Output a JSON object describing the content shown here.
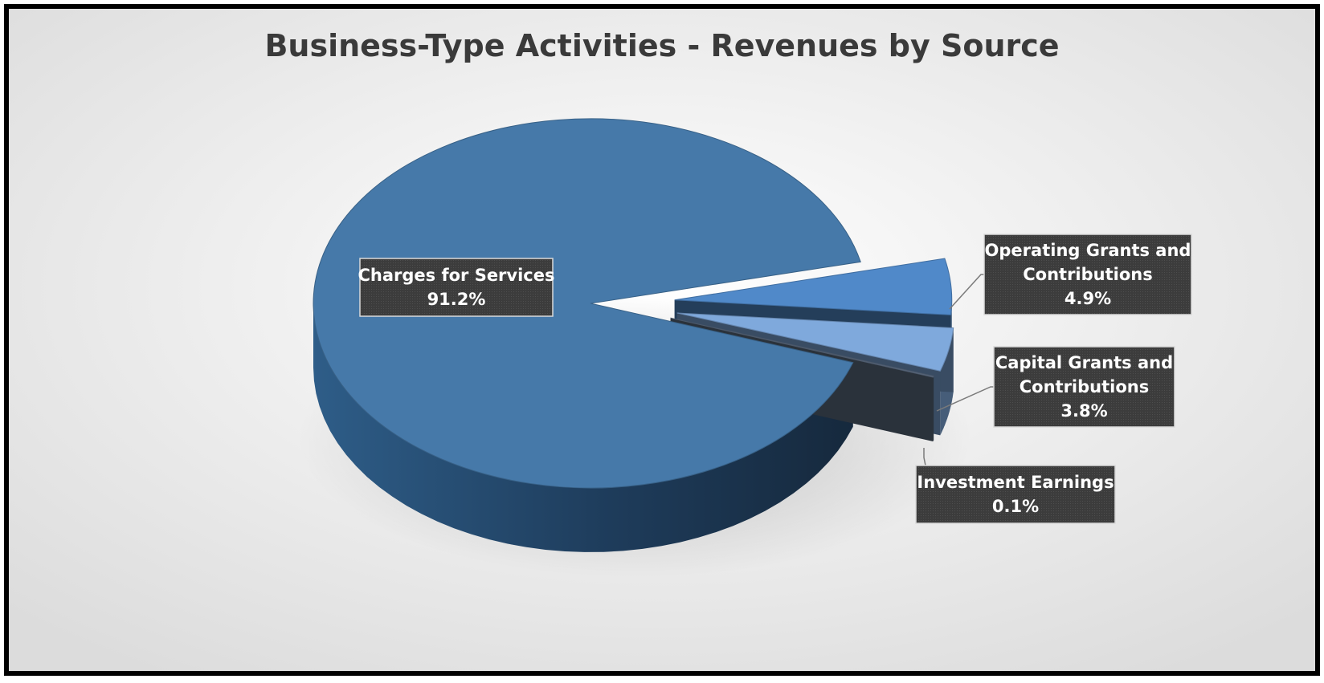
{
  "chart_data": {
    "type": "pie",
    "title": "Business-Type Activities - Revenues by Source",
    "slices": [
      {
        "name": "Charges for Services",
        "value": 91.2,
        "label": "91.2%",
        "color": "#4679A9"
      },
      {
        "name": "Operating Grants and Contributions",
        "value": 4.9,
        "label": "4.9%",
        "color": "#5089C9"
      },
      {
        "name": "Capital Grants and Contributions",
        "value": 3.8,
        "label": "3.8%",
        "color": "#7FA9DC"
      },
      {
        "name": "Investment Earnings",
        "value": 0.1,
        "label": "0.1%",
        "color": "#5E6E84"
      }
    ]
  }
}
